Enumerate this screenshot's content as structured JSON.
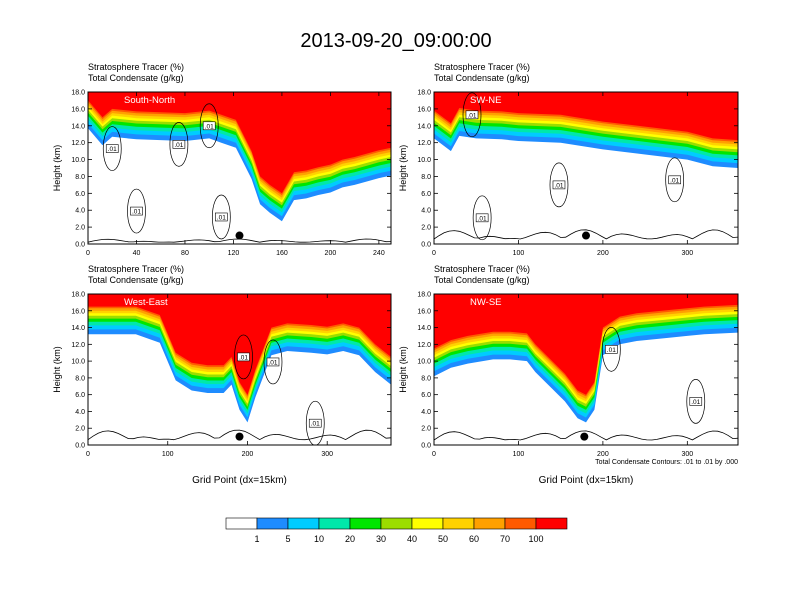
{
  "title": "2013-09-20_09:00:00",
  "footnote": "Total Condensate Contours: .01 to .01 by .000",
  "chart_data": [
    {
      "type": "heatmap",
      "panel": "South-North",
      "header_lines": [
        "Stratosphere Tracer   (%)",
        "Total Condensate   (g/kg)"
      ],
      "ylabel": "Height (km)",
      "xlabel": "",
      "xlim": [
        0,
        250
      ],
      "ylim": [
        0,
        18
      ],
      "xticks": [
        "0",
        "40",
        "80",
        "120",
        "160",
        "200",
        "240"
      ],
      "xtick_values": [
        0,
        40,
        80,
        120,
        160,
        200,
        240
      ],
      "yticks": [
        "0.0",
        "2.0",
        "4.0",
        "6.0",
        "8.0",
        "10.0",
        "12.0",
        "14.0",
        "16.0",
        "18.0"
      ],
      "tropopause_x": [
        0,
        12,
        20,
        40,
        60,
        80,
        100,
        110,
        122,
        135,
        142,
        150,
        160,
        170,
        180,
        190,
        200,
        210,
        220,
        230,
        240,
        250
      ],
      "tropopause_km": [
        15.5,
        13.5,
        14.5,
        14.2,
        14.1,
        14.0,
        14.3,
        13.8,
        13.2,
        9.5,
        6.5,
        5.5,
        4.5,
        7.0,
        7.2,
        7.6,
        7.9,
        8.5,
        8.8,
        9.2,
        9.6,
        9.9
      ],
      "contour_labels": [
        ".01",
        ".01",
        ".01",
        ".01",
        ".01"
      ],
      "contour_label_x": [
        20,
        75,
        100,
        40,
        110
      ],
      "contour_label_km": [
        11.3,
        11.8,
        14.0,
        3.9,
        3.2
      ],
      "terrain_max_km": 0.6,
      "marker_x": 125,
      "marker_km": 1.0
    },
    {
      "type": "heatmap",
      "panel": "SW-NE",
      "header_lines": [
        "Stratosphere Tracer   (%)",
        "Total Condensate   (g/kg)"
      ],
      "ylabel": "Height (km)",
      "xlabel": "",
      "xlim": [
        0,
        360
      ],
      "ylim": [
        0,
        18
      ],
      "xticks": [
        "0",
        "100",
        "200",
        "300"
      ],
      "xtick_values": [
        0,
        100,
        200,
        300
      ],
      "yticks": [
        "0.0",
        "2.0",
        "4.0",
        "6.0",
        "8.0",
        "10.0",
        "12.0",
        "14.0",
        "16.0",
        "18.0"
      ],
      "tropopause_x": [
        0,
        20,
        30,
        50,
        80,
        100,
        150,
        200,
        250,
        300,
        330,
        360
      ],
      "tropopause_km": [
        14.3,
        12.8,
        14.6,
        14.3,
        14.2,
        14.0,
        13.8,
        13.0,
        12.4,
        11.8,
        11.0,
        10.8
      ],
      "contour_labels": [
        ".01",
        ".01",
        ".01",
        ".01"
      ],
      "contour_label_x": [
        45,
        148,
        57,
        285
      ],
      "contour_label_km": [
        15.3,
        7.0,
        3.1,
        7.6
      ],
      "terrain_max_km": 1.7,
      "marker_x": 180,
      "marker_km": 1.0
    },
    {
      "type": "heatmap",
      "panel": "West-East",
      "header_lines": [
        "Stratosphere Tracer   (%)",
        "Total Condensate   (g/kg)"
      ],
      "ylabel": "Height (km)",
      "xlabel": "Grid Point (dx=15km)",
      "xlim": [
        0,
        380
      ],
      "ylim": [
        0,
        18
      ],
      "xticks": [
        "0",
        "100",
        "200",
        "300"
      ],
      "xtick_values": [
        0,
        100,
        200,
        300
      ],
      "yticks": [
        "0.0",
        "2.0",
        "4.0",
        "6.0",
        "8.0",
        "10.0",
        "12.0",
        "14.0",
        "16.0",
        "18.0"
      ],
      "tropopause_x": [
        0,
        60,
        90,
        110,
        130,
        150,
        170,
        180,
        190,
        200,
        210,
        230,
        250,
        280,
        300,
        320,
        340,
        360,
        380
      ],
      "tropopause_km": [
        15.0,
        15.0,
        14.0,
        9.5,
        8.3,
        8.0,
        8.0,
        9.0,
        6.0,
        4.5,
        7.5,
        12.5,
        13.0,
        12.8,
        12.6,
        13.0,
        12.5,
        10.5,
        9.0
      ],
      "contour_labels": [
        ".01",
        ".01",
        ".01"
      ],
      "contour_label_x": [
        195,
        232,
        285
      ],
      "contour_label_km": [
        10.5,
        9.9,
        2.6
      ],
      "terrain_max_km": 1.8,
      "marker_x": 190,
      "marker_km": 1.0
    },
    {
      "type": "heatmap",
      "panel": "NW-SE",
      "header_lines": [
        "Stratosphere Tracer   (%)",
        "Total Condensate   (g/kg)"
      ],
      "ylabel": "Height (km)",
      "xlabel": "Grid Point (dx=15km)",
      "xlim": [
        0,
        360
      ],
      "ylim": [
        0,
        18
      ],
      "xticks": [
        "0",
        "100",
        "200",
        "300"
      ],
      "xtick_values": [
        0,
        100,
        200,
        300
      ],
      "yticks": [
        "0.0",
        "2.0",
        "4.0",
        "6.0",
        "8.0",
        "10.0",
        "12.0",
        "14.0",
        "16.0",
        "18.0"
      ],
      "tropopause_x": [
        0,
        20,
        40,
        70,
        90,
        110,
        120,
        140,
        155,
        170,
        180,
        190,
        200,
        220,
        240,
        280,
        300,
        320,
        360
      ],
      "tropopause_km": [
        10.0,
        11.0,
        11.5,
        12.0,
        12.0,
        11.8,
        10.5,
        8.5,
        7.0,
        5.0,
        4.5,
        6.0,
        12.5,
        13.8,
        14.2,
        14.6,
        14.8,
        15.0,
        15.2
      ],
      "contour_labels": [
        ".01",
        ".01"
      ],
      "contour_label_x": [
        210,
        310
      ],
      "contour_label_km": [
        11.4,
        5.2
      ],
      "terrain_max_km": 1.7,
      "marker_x": 178,
      "marker_km": 1.0
    }
  ],
  "legend": {
    "colors": [
      "#ffffff",
      "#1e8cff",
      "#00ccff",
      "#00e8aa",
      "#00e600",
      "#9cdd00",
      "#ffff00",
      "#ffd200",
      "#ffa000",
      "#ff5a00",
      "#ff0000"
    ],
    "labels": [
      "1",
      "5",
      "10",
      "20",
      "30",
      "40",
      "50",
      "60",
      "70",
      "100"
    ]
  }
}
